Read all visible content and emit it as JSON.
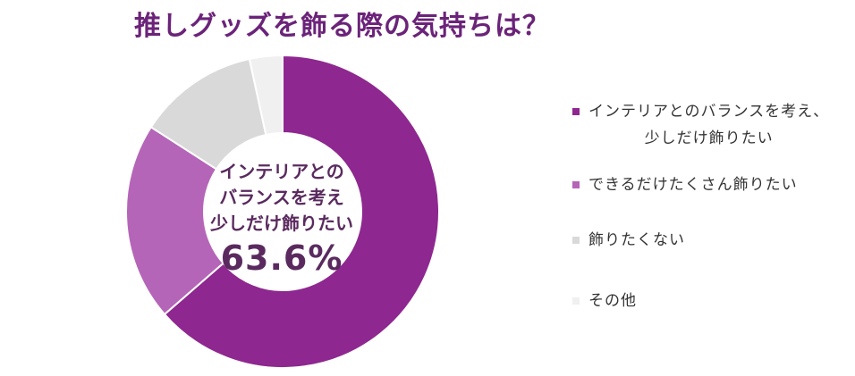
{
  "title": "推しグッズを飾る際の気持ちは？",
  "center": {
    "label": "インテリアとの\nバランスを考え\n少しだけ飾りたい",
    "value": "63.6%"
  },
  "legend": [
    {
      "label": "インテリアとのバランスを考え、\n少しだけ飾りたい"
    },
    {
      "label": "できるだけたくさん飾りたい"
    },
    {
      "label": "飾りたくない"
    },
    {
      "label": "その他"
    }
  ],
  "chart_data": {
    "type": "pie",
    "title": "推しグッズを飾る際の気持ちは？",
    "categories": [
      "インテリアとのバランスを考え、少しだけ飾りたい",
      "できるだけたくさん飾りたい",
      "飾りたくない",
      "その他"
    ],
    "values": [
      63.6,
      20.5,
      12.5,
      3.4
    ],
    "colors": [
      "#8e278f",
      "#b565b8",
      "#d9d9d9",
      "#f0f0f0"
    ],
    "donut": true,
    "legend_position": "right"
  }
}
